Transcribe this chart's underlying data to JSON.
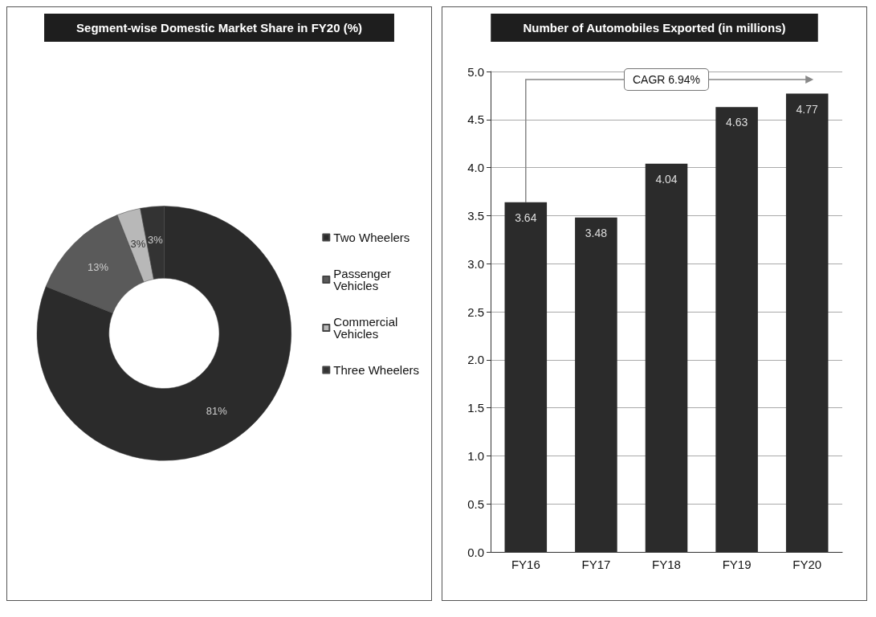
{
  "chart_data": [
    {
      "type": "donut",
      "title": "Segment-wise Domestic Market Share in FY20 (%)",
      "categories": [
        "Two Wheelers",
        "Passenger Vehicles",
        "Commercial Vehicles",
        "Three Wheelers"
      ],
      "values": [
        81,
        13,
        3,
        3
      ],
      "colors": [
        "#2b2b2b",
        "#5a5a5a",
        "#b8b8b8",
        "#333333"
      ],
      "value_labels": [
        "81%",
        "13%",
        "3%",
        "3%"
      ],
      "legend": "right"
    },
    {
      "type": "bar",
      "title": "Number of Automobiles Exported (in millions)",
      "categories": [
        "FY16",
        "FY17",
        "FY18",
        "FY19",
        "FY20"
      ],
      "values": [
        3.64,
        3.48,
        4.04,
        4.63,
        4.77
      ],
      "color": "#2b2b2b",
      "ylim": [
        0,
        5
      ],
      "yticks": [
        {
          "value": 0,
          "label": "0.0"
        },
        {
          "value": 0.5,
          "label": "0.5"
        },
        {
          "value": 1,
          "label": "1.0"
        },
        {
          "value": 1.5,
          "label": "1.5"
        },
        {
          "value": 2,
          "label": "2.0"
        },
        {
          "value": 2.5,
          "label": "2.5"
        },
        {
          "value": 3,
          "label": "3.0"
        },
        {
          "value": 3.5,
          "label": "3.5"
        },
        {
          "value": 4,
          "label": "4.0"
        },
        {
          "value": 4.5,
          "label": "4.5"
        },
        {
          "value": 5,
          "label": "5.0"
        }
      ],
      "grid": "y",
      "data_labels": true,
      "legend": false,
      "annotations": [
        "CAGR 6.94%"
      ]
    }
  ]
}
